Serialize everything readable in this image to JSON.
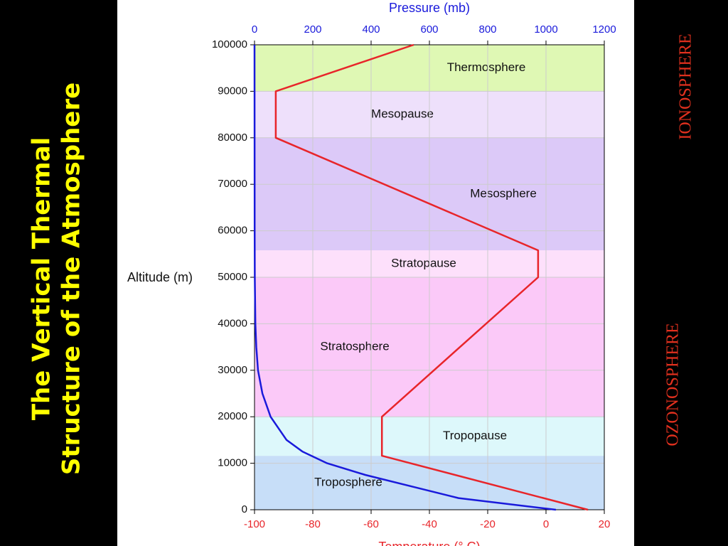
{
  "title_lines": [
    "The Vertical Thermal",
    "Structure of the Atmosphere"
  ],
  "side_labels": [
    "IONOSPHERE",
    "OZONOSPHERE"
  ],
  "chart_data": {
    "type": "line",
    "y_label": "Altitude (m)",
    "x_label": "Temperature (° C)",
    "x2_label": "Pressure (mb)",
    "ylim": [
      0,
      100000
    ],
    "yticks": [
      0,
      10000,
      20000,
      30000,
      40000,
      50000,
      60000,
      70000,
      80000,
      90000,
      100000
    ],
    "xlim": [
      -100,
      20
    ],
    "xticks": [
      -100,
      -80,
      -60,
      -40,
      -20,
      0,
      20
    ],
    "x2lim": [
      0,
      1200
    ],
    "x2ticks": [
      0,
      200,
      400,
      600,
      800,
      1000,
      1200
    ],
    "layers": [
      {
        "name": "Troposphere",
        "from": 0,
        "to": 11600,
        "color": "#c7def8"
      },
      {
        "name": "Tropopause",
        "from": 11600,
        "to": 20000,
        "color": "#ddf8fb"
      },
      {
        "name": "Stratosphere",
        "from": 20000,
        "to": 50000,
        "color": "#fbc9f8"
      },
      {
        "name": "Stratopause",
        "from": 50000,
        "to": 55800,
        "color": "#fde0fb"
      },
      {
        "name": "Mesosphere",
        "from": 55800,
        "to": 80000,
        "color": "#dcc9f8"
      },
      {
        "name": "Mesopause",
        "from": 80000,
        "to": 90000,
        "color": "#eee0fb"
      },
      {
        "name": "Thermosphere",
        "from": 90000,
        "to": 100000,
        "color": "#dff8b4"
      }
    ],
    "series": [
      {
        "axis": "x",
        "color": "#e8252a",
        "values": [
          14.4,
          -56.3,
          -56.3,
          -2.7,
          -2.7,
          -92.7,
          -92.7,
          -45.4
        ],
        "altitude": [
          0,
          11600,
          20000,
          50000,
          55800,
          80000,
          90000,
          100000
        ]
      },
      {
        "axis": "x2",
        "color": "#1a1adb",
        "values": [
          1034,
          700,
          540,
          380,
          249,
          165,
          110,
          55,
          27,
          12,
          6,
          3,
          1,
          0.5,
          0
        ],
        "altitude": [
          0,
          2500,
          5000,
          7500,
          10000,
          12500,
          15000,
          20000,
          25000,
          30000,
          35000,
          40000,
          50000,
          60000,
          100000
        ]
      }
    ]
  }
}
